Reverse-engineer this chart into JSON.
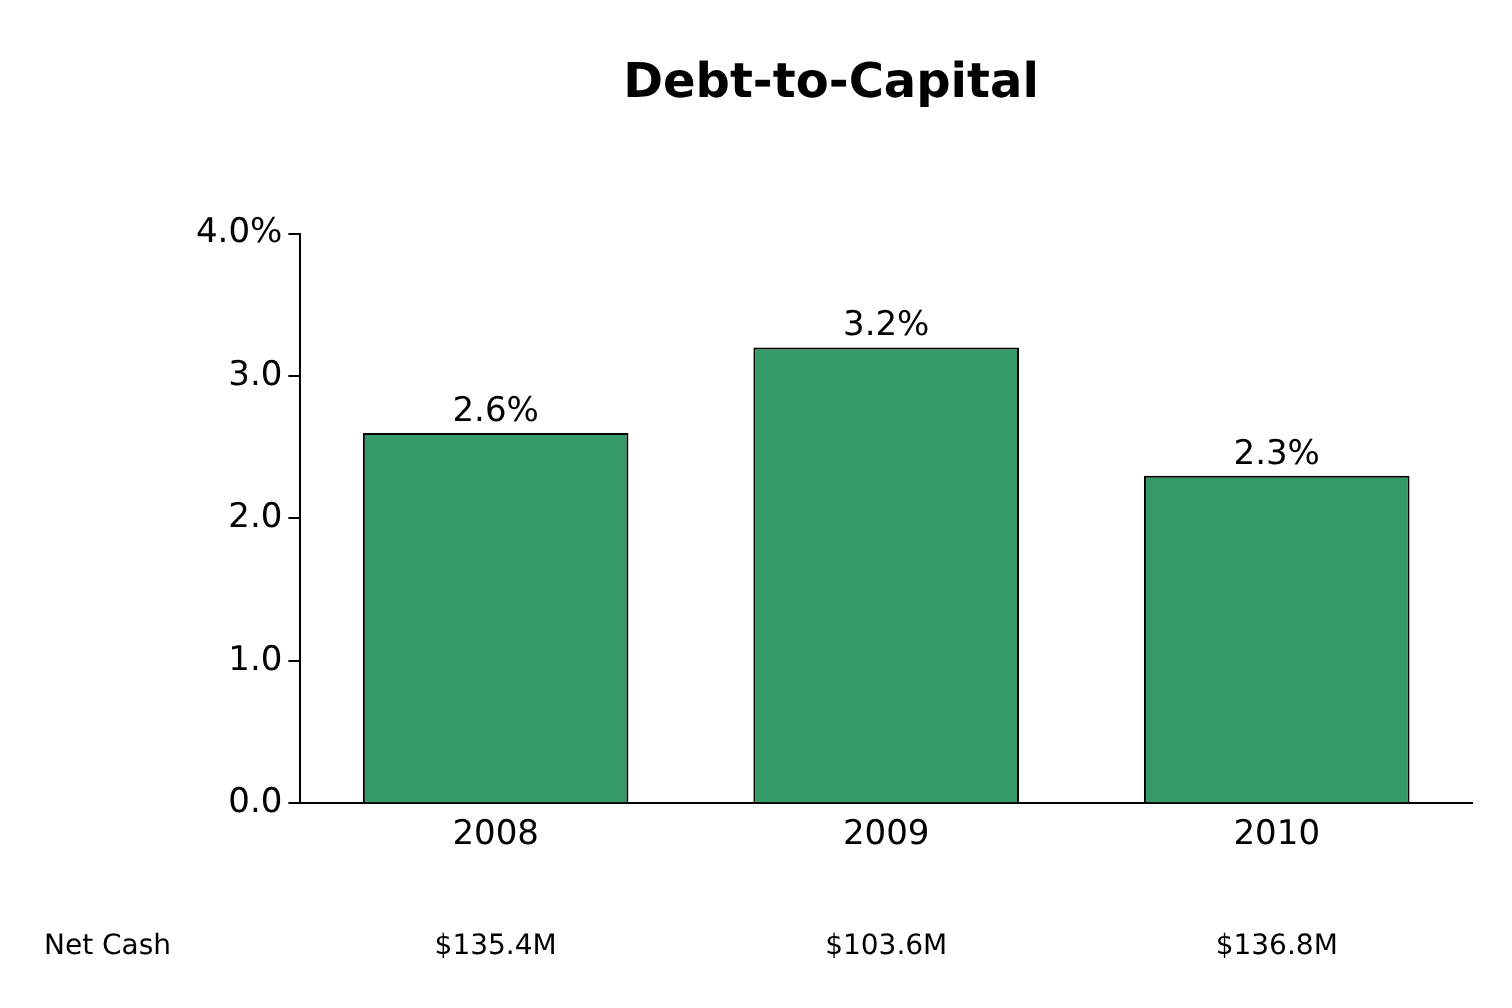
{
  "chart_data": {
    "type": "bar",
    "title": "Debt-to-Capital",
    "categories": [
      "2008",
      "2009",
      "2010"
    ],
    "values": [
      2.6,
      3.2,
      2.3
    ],
    "color": "#36996a",
    "value_labels": [
      "2.6%",
      "3.2%",
      "2.3%"
    ],
    "ylim": [
      0,
      4
    ],
    "yticks": [
      {
        "value": 0,
        "label": "0.0"
      },
      {
        "value": 1,
        "label": "1.0"
      },
      {
        "value": 2,
        "label": "2.0"
      },
      {
        "value": 3,
        "label": "3.0"
      },
      {
        "value": 4,
        "label": "4.0%"
      }
    ],
    "grid": false,
    "legend": false,
    "annotations": [
      "Net Cash",
      "$135.4M",
      "$103.6M",
      "$136.8M"
    ]
  }
}
